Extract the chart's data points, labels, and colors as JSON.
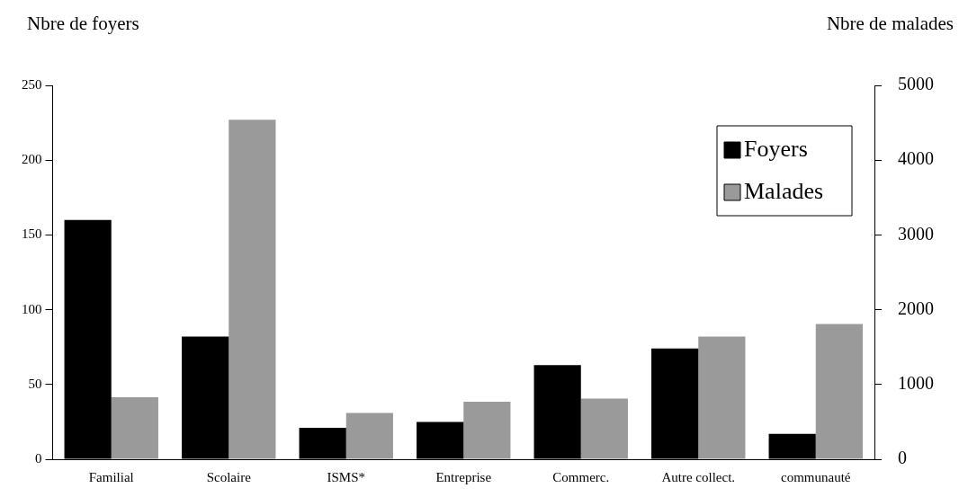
{
  "chart_data": {
    "type": "bar",
    "ylabel": "Nbre de foyers",
    "y2label": "Nbre de malades",
    "categories": [
      "Familial",
      "Scolaire",
      "ISMS*",
      "Entreprise",
      "Commerc.",
      "Autre collect.",
      "communauté"
    ],
    "series": [
      {
        "name": "Foyers",
        "color": "#000000",
        "values": [
          160,
          82,
          21,
          25,
          63,
          74,
          17
        ]
      },
      {
        "name": "Malades",
        "color": "#9a9a9a",
        "axis": "y2",
        "values": [
          830,
          4540,
          620,
          770,
          810,
          1640,
          1810
        ]
      }
    ],
    "ylim": [
      0,
      250
    ],
    "yticks": [
      0,
      50,
      100,
      150,
      200,
      250
    ],
    "y2lim": [
      0,
      5000
    ],
    "y2ticks": [
      0,
      1000,
      2000,
      3000,
      4000,
      5000
    ],
    "grid": false,
    "legend": "top right"
  }
}
